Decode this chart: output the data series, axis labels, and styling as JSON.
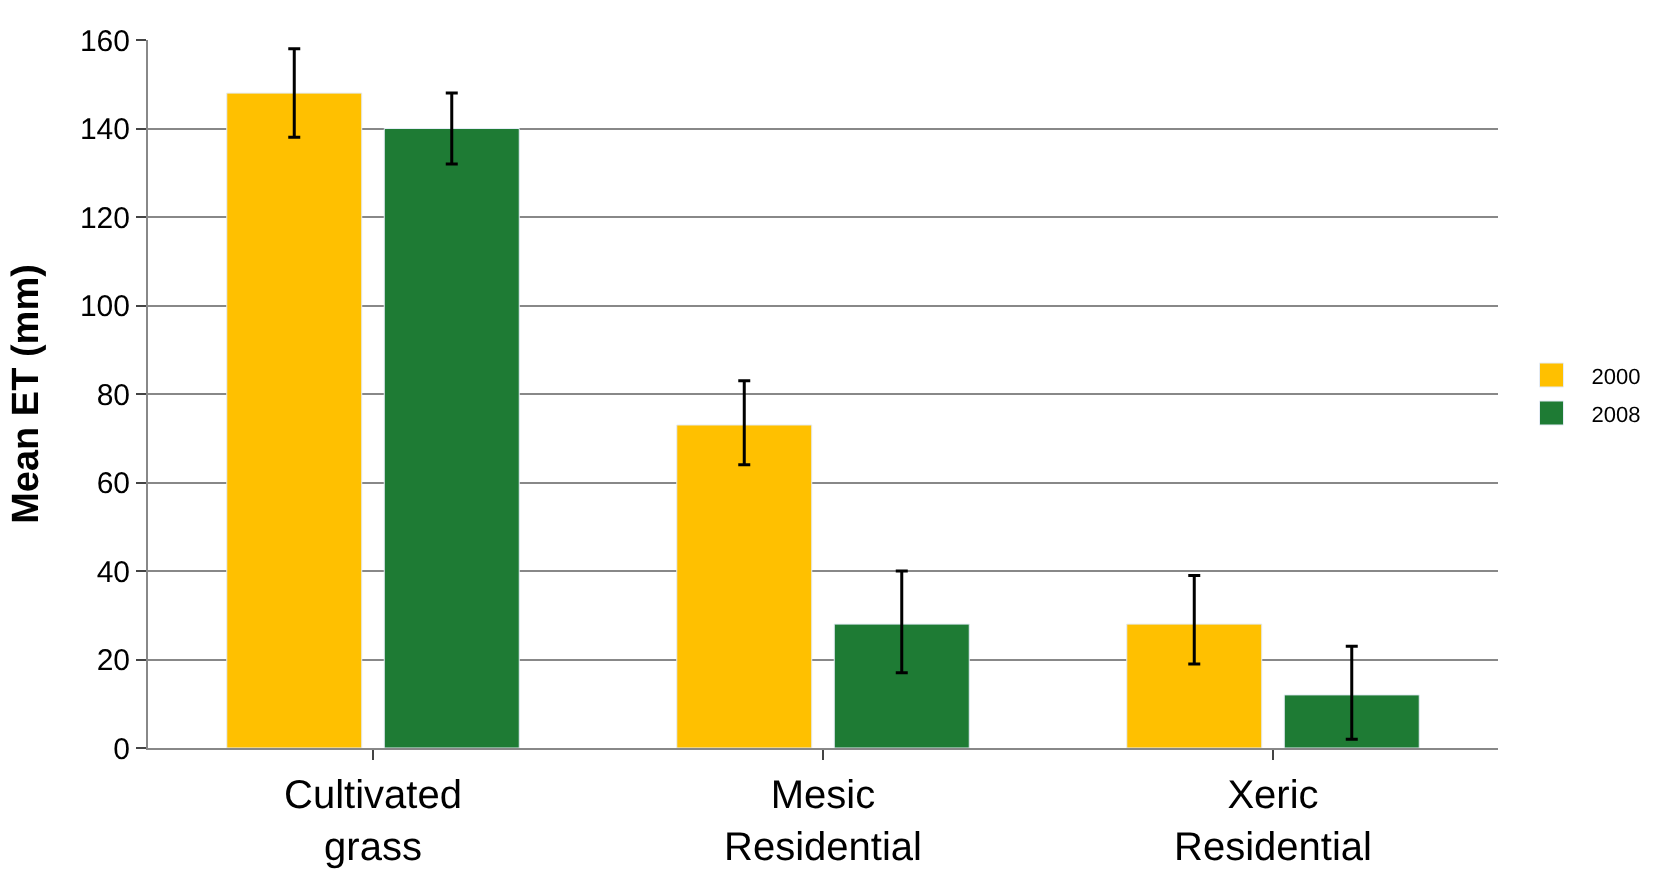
{
  "chart_data": {
    "type": "bar",
    "ylabel": "Mean ET (mm)",
    "categories": [
      "Cultivated grass",
      "Mesic Residential",
      "Xeric Residential"
    ],
    "series": [
      {
        "name": "2000",
        "color": "#ffc000",
        "values": [
          148,
          73,
          28
        ],
        "errors": [
          [
            138,
            158
          ],
          [
            64,
            83
          ],
          [
            19,
            39
          ]
        ]
      },
      {
        "name": "2008",
        "color": "#1e7b34",
        "values": [
          140,
          28,
          12
        ],
        "errors": [
          [
            132,
            148
          ],
          [
            17,
            40
          ],
          [
            2,
            23
          ]
        ]
      }
    ],
    "ylim": [
      0,
      160
    ],
    "yticks": [
      0,
      20,
      40,
      60,
      80,
      100,
      120,
      140,
      160
    ],
    "grid": "y",
    "legend": "right"
  }
}
